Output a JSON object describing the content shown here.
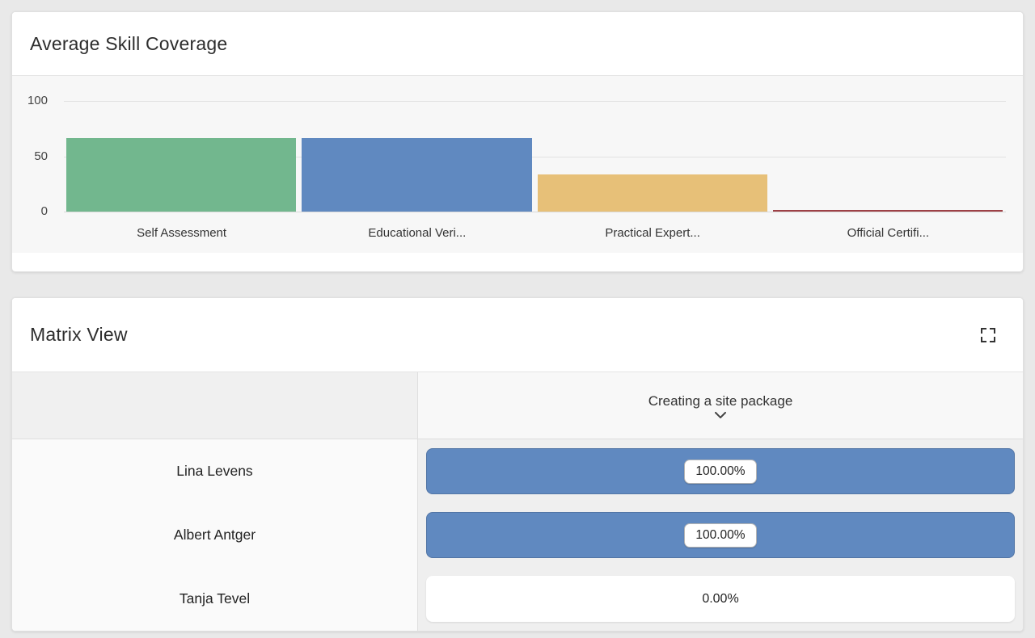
{
  "skill_card": {
    "title": "Average Skill Coverage"
  },
  "chart_data": {
    "type": "bar",
    "title": "Average Skill Coverage",
    "categories": [
      "Self Assessment",
      "Educational Veri...",
      "Practical Expert...",
      "Official Certifi..."
    ],
    "values": [
      66.7,
      66.7,
      33.3,
      0.5
    ],
    "colors": [
      "#72b78e",
      "#6089c0",
      "#e7c078",
      "#9e4146"
    ],
    "xlabel": "",
    "ylabel": "",
    "yticks": [
      0,
      50,
      100
    ],
    "ylim": [
      0,
      100
    ],
    "grid": true,
    "legend": false
  },
  "matrix_card": {
    "title": "Matrix View",
    "fullscreen_icon": "fullscreen-icon",
    "column_header": "Creating a site package",
    "chevron_icon": "chevron-down-icon",
    "bar_color": "#6089c0",
    "empty_bar_color": "#ffffff",
    "rows": [
      {
        "name": "Lina Levens",
        "value_label": "100.00%",
        "percent": 100
      },
      {
        "name": "Albert Antger",
        "value_label": "100.00%",
        "percent": 100
      },
      {
        "name": "Tanja Tevel",
        "value_label": "0.00%",
        "percent": 0
      }
    ]
  },
  "colors": {
    "page_bg": "#e9e9e9",
    "chart_bg": "#f7f7f7",
    "grid_line": "#e2e2e2"
  }
}
